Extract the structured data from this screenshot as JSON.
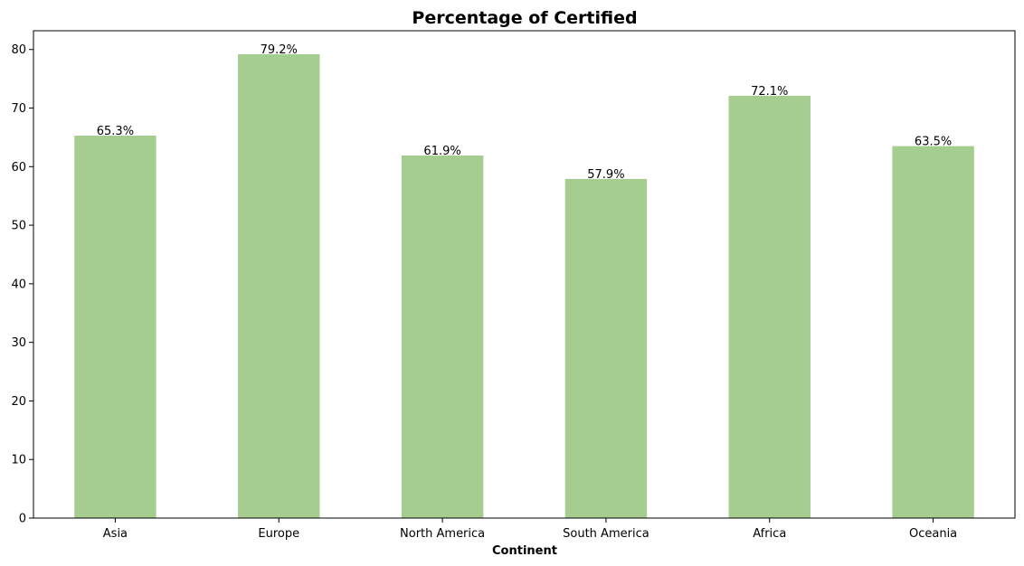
{
  "chart_data": {
    "type": "bar",
    "title": "Percentage of Certified",
    "xlabel": "Continent",
    "ylabel": "",
    "categories": [
      "Asia",
      "Europe",
      "North America",
      "South America",
      "Africa",
      "Oceania"
    ],
    "values": [
      65.3,
      79.2,
      61.9,
      57.9,
      72.1,
      63.5
    ],
    "data_labels": [
      "65.3%",
      "79.2%",
      "61.9%",
      "57.9%",
      "72.1%",
      "63.5%"
    ],
    "yticks": [
      0,
      10,
      20,
      30,
      40,
      50,
      60,
      70,
      80
    ],
    "ylim": [
      0,
      83.2
    ],
    "grid": false,
    "legend": "none",
    "bar_color": "#a5cd8f"
  }
}
